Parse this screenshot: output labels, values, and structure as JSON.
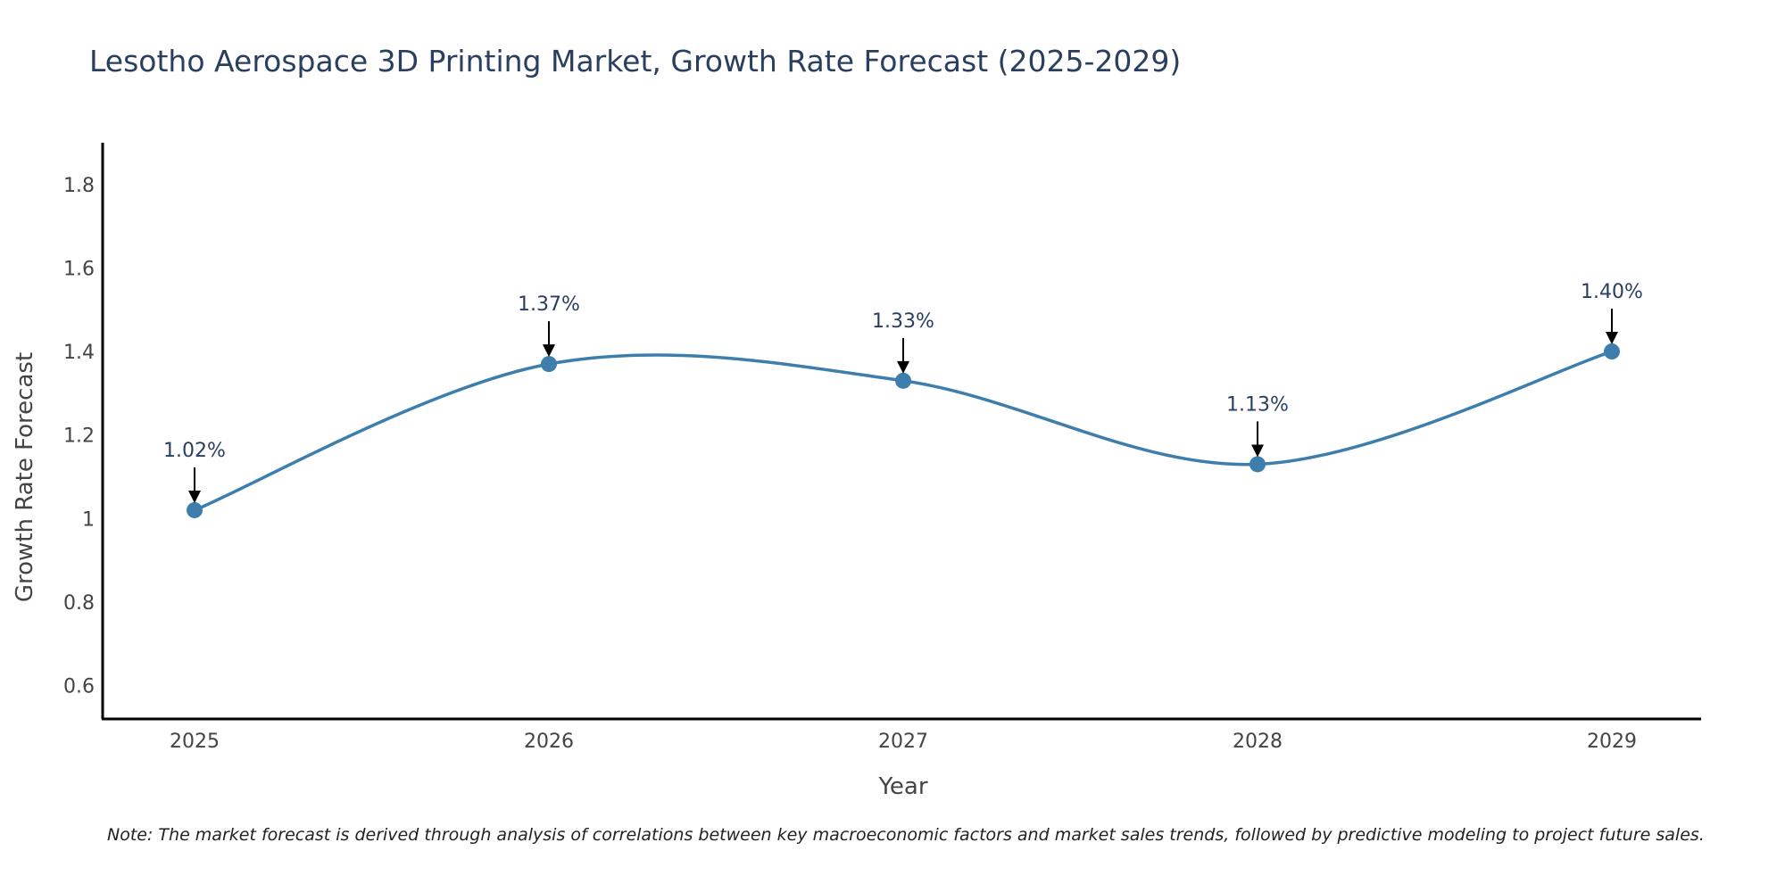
{
  "chart_data": {
    "type": "line",
    "title": "Lesotho Aerospace 3D Printing Market, Growth Rate Forecast (2025-2029)",
    "xlabel": "Year",
    "ylabel": "Growth Rate Forecast",
    "categories": [
      "2025",
      "2026",
      "2027",
      "2028",
      "2029"
    ],
    "values": [
      1.02,
      1.37,
      1.33,
      1.13,
      1.4
    ],
    "data_labels": [
      "1.02%",
      "1.37%",
      "1.33%",
      "1.13%",
      "1.40%"
    ],
    "ylim": [
      0.52,
      1.9
    ],
    "yticks": [
      0.6,
      0.8,
      1,
      1.2,
      1.4,
      1.6,
      1.8
    ],
    "ytick_labels": [
      "0.6",
      "0.8",
      "1",
      "1.2",
      "1.4",
      "1.6",
      "1.8"
    ],
    "grid": false,
    "line_color": "#3d7ead",
    "marker_color": "#3d7ead",
    "annotation_color": "#000000"
  },
  "note": "Note: The market forecast is derived through analysis of correlations between key macroeconomic factors and market sales trends, followed by predictive modeling to project future sales."
}
